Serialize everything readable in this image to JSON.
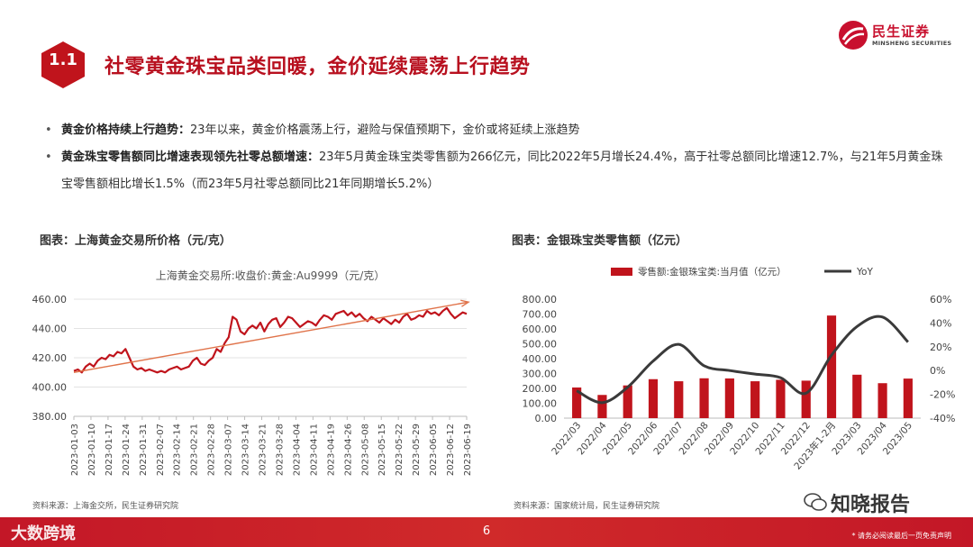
{
  "header": {
    "badge": "1.1",
    "title": "社零黄金珠宝品类回暖，金价延续震荡上行趋势"
  },
  "logo": {
    "cn": "民生证券",
    "en": "MINSHENG SECURITIES"
  },
  "bullets": [
    {
      "bold": "黄金价格持续上行趋势：",
      "text": "23年以来，黄金价格震荡上行，避险与保值预期下，金价或将延续上涨趋势"
    },
    {
      "bold": "黄金珠宝零售额同比增速表现领先社零总额增速：",
      "text": "23年5月黄金珠宝类零售额为266亿元，同比2022年5月增长24.4%，高于社零总额同比增速12.7%，与21年5月黄金珠宝零售额相比增长1.5%（而23年5月社零总额同比21年同期增长5.2%）"
    }
  ],
  "left_panel": {
    "chart_title": "图表：上海黄金交易所价格（元/克）",
    "source": "资料来源：上海金交所，民生证券研究院"
  },
  "right_panel": {
    "chart_title": "图表：金银珠宝类零售额（亿元）",
    "source": "资料来源：国家统计局，民生证券研究院"
  },
  "chart_data": [
    {
      "type": "line",
      "title": "上海黄金交易所:收盘价:黄金:Au9999（元/克）",
      "ylim": [
        380,
        460
      ],
      "yticks": [
        "380.00",
        "400.00",
        "420.00",
        "440.00",
        "460.00"
      ],
      "x_tick_labels": [
        "2023-01-03",
        "2023-01-10",
        "2023-01-17",
        "2023-01-24",
        "2023-01-31",
        "2023-02-07",
        "2023-02-14",
        "2023-02-21",
        "2023-02-28",
        "2023-03-07",
        "2023-03-14",
        "2023-03-21",
        "2023-03-28",
        "2023-04-04",
        "2023-04-11",
        "2023-04-19",
        "2023-04-26",
        "2023-05-08",
        "2023-05-15",
        "2023-05-22",
        "2023-05-29",
        "2023-06-05",
        "2023-06-12",
        "2023-06-19"
      ],
      "series": [
        {
          "color": "#c0141c",
          "values": [
            411,
            412,
            410,
            414,
            416,
            414,
            418,
            420,
            419,
            422,
            421,
            424,
            423,
            426,
            420,
            414,
            412,
            413,
            411,
            412,
            411,
            410,
            411,
            410,
            412,
            413,
            414,
            412,
            413,
            414,
            418,
            420,
            416,
            415,
            418,
            420,
            426,
            424,
            430,
            434,
            448,
            446,
            438,
            436,
            440,
            442,
            440,
            444,
            438,
            443,
            446,
            447,
            441,
            444,
            448,
            447,
            444,
            441,
            443,
            445,
            444,
            442,
            446,
            449,
            448,
            446,
            450,
            451,
            452,
            449,
            451,
            448,
            450,
            447,
            445,
            448,
            446,
            444,
            447,
            445,
            443,
            446,
            444,
            448,
            450,
            446,
            447,
            449,
            448,
            452,
            450,
            451,
            449,
            452,
            454,
            450,
            447,
            449,
            451,
            450
          ]
        }
      ],
      "trend_arrow": {
        "from": [
          0,
          410
        ],
        "to": [
          99,
          458
        ],
        "color": "#e0734a"
      },
      "grid": true
    },
    {
      "type": "bar+line",
      "categories": [
        "2022/03",
        "2022/04",
        "2022/05",
        "2022/06",
        "2022/07",
        "2022/08",
        "2022/09",
        "2022/10",
        "2022/11",
        "2022/12",
        "2023年1-2月",
        "2023/03",
        "2023/04",
        "2023/05"
      ],
      "series": [
        {
          "name": "零售额:金银珠宝类:当月值（亿元）",
          "type": "bar",
          "axis": "left",
          "color": "#c0141c",
          "values": [
            206,
            156,
            220,
            262,
            248,
            268,
            267,
            248,
            258,
            252,
            690,
            292,
            235,
            266
          ]
        },
        {
          "name": "YoY",
          "type": "line",
          "axis": "right",
          "color": "#3a3a3a",
          "values": [
            -17,
            -27,
            -14,
            8,
            22,
            4,
            0,
            -3,
            -6,
            -19,
            13,
            37,
            45,
            24
          ]
        }
      ],
      "left_ylim": [
        0,
        800
      ],
      "left_yticks": [
        "0.00",
        "100.00",
        "200.00",
        "300.00",
        "400.00",
        "500.00",
        "600.00",
        "700.00",
        "800.00"
      ],
      "right_ylim": [
        -40,
        60
      ],
      "right_yticks": [
        "-40%",
        "-20%",
        "0%",
        "20%",
        "40%",
        "60%"
      ],
      "legend": "top"
    }
  ],
  "footer": {
    "page": "6",
    "left_mark": "大数跨境",
    "disclaimer": "* 请务必阅读最后一页免责声明",
    "watermark": "知晓报告"
  }
}
